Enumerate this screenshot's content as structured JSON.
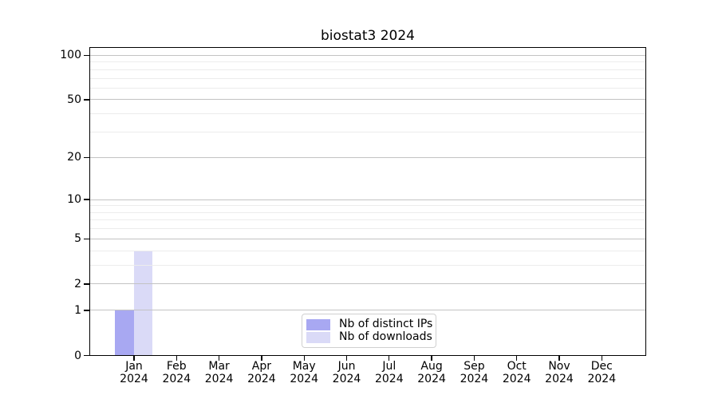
{
  "chart_data": {
    "type": "bar",
    "title": "biostat3 2024",
    "months": [
      "Jan",
      "Feb",
      "Mar",
      "Apr",
      "May",
      "Jun",
      "Jul",
      "Aug",
      "Sep",
      "Oct",
      "Nov",
      "Dec"
    ],
    "years": [
      "2024",
      "2024",
      "2024",
      "2024",
      "2024",
      "2024",
      "2024",
      "2024",
      "2024",
      "2024",
      "2024",
      "2024"
    ],
    "series": [
      {
        "name": "Nb of distinct IPs",
        "color": "#a8a8f2",
        "values": [
          1,
          0,
          0,
          0,
          0,
          0,
          0,
          0,
          0,
          0,
          0,
          0
        ]
      },
      {
        "name": "Nb of downloads",
        "color": "#dadaf7",
        "values": [
          4,
          0,
          0,
          0,
          0,
          0,
          0,
          0,
          0,
          0,
          0,
          0
        ]
      }
    ],
    "y_axis": {
      "scale": "log1p",
      "tick_values": [
        0,
        1,
        2,
        5,
        10,
        20,
        50,
        100
      ],
      "tick_labels": [
        "0",
        "1",
        "2",
        "5",
        "10",
        "20",
        "50",
        "100"
      ],
      "minor_gridline_values": [
        3,
        4,
        6,
        7,
        8,
        9,
        30,
        40,
        60,
        70,
        80,
        90
      ],
      "range": [
        0,
        111
      ]
    },
    "grid": true,
    "legend_position": "bottom-center-inside"
  },
  "colors": {
    "background": "#ffffff",
    "axis": "#000000",
    "major_grid": "#c3c3c3",
    "minor_grid": "#ececec",
    "legend_border": "#d0d0d0",
    "text": "#000000"
  }
}
